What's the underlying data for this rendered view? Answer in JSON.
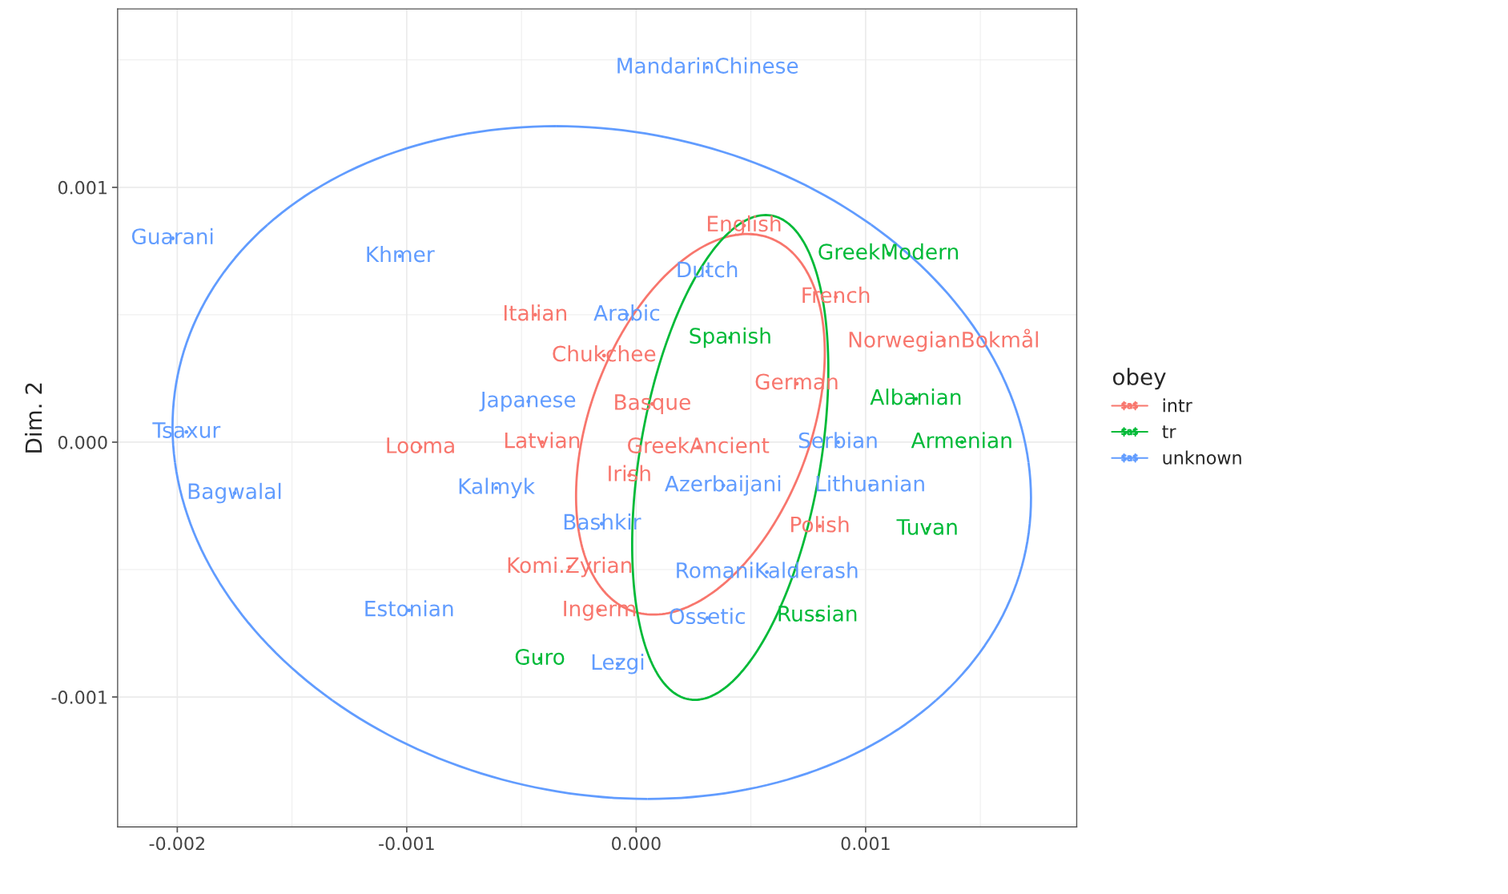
{
  "chart_data": {
    "type": "scatter",
    "ylabel": "Dim. 2",
    "legend_title": "obey",
    "legend": "right",
    "grid": true,
    "xlim": [
      -0.00226,
      0.00192
    ],
    "ylim": [
      -0.00151,
      0.0017
    ],
    "xticks": [
      {
        "value": -0.002,
        "label": "-0.002"
      },
      {
        "value": -0.001,
        "label": "-0.001"
      },
      {
        "value": 0,
        "label": "0.000"
      },
      {
        "value": 0.001,
        "label": "0.001"
      }
    ],
    "yticks": [
      {
        "value": -0.001,
        "label": "-0.001"
      },
      {
        "value": 0,
        "label": "0.000"
      },
      {
        "value": 0.001,
        "label": "0.001"
      }
    ],
    "series": [
      {
        "name": "intr",
        "color": "#f8766d",
        "x": [
          0.00047,
          0.00087,
          0.00134,
          -0.00044,
          -0.00014,
          0.0007,
          7e-05,
          -0.00041,
          -0.00094,
          0.00027,
          -3e-05,
          0.0008,
          -0.00029,
          -0.00016
        ],
        "values": [
          0.00085,
          0.00057,
          0.0004,
          0.0005,
          0.00034,
          0.00023,
          0.00015,
          0,
          -2e-05,
          -2e-05,
          -0.00013,
          -0.00033,
          -0.00049,
          -0.00066
        ],
        "value_labels": [
          "English",
          "French",
          "NorwegianBokmål",
          "Italian",
          "Chukchee",
          "German",
          "Basque",
          "Latvian",
          "Looma",
          "GreekAncient",
          "Irish",
          "Polish",
          "Komi.Zyrian",
          "Ingerm"
        ]
      },
      {
        "name": "tr",
        "color": "#00ba38",
        "x": [
          0.0011,
          0.00041,
          0.00122,
          0.00142,
          0.00127,
          0.00079,
          -0.00042
        ],
        "values": [
          0.00074,
          0.00041,
          0.00017,
          0,
          -0.00034,
          -0.00068,
          -0.00085
        ],
        "value_labels": [
          "GreekModern",
          "Spanish",
          "Albanian",
          "Armenian",
          "Tuvan",
          "Russian",
          "Guro"
        ]
      },
      {
        "name": "unknown",
        "color": "#619cff",
        "x": [
          0.00031,
          -0.00202,
          -0.00103,
          0.00031,
          -4e-05,
          -0.00047,
          -0.00196,
          0.00088,
          -0.00175,
          -0.00061,
          0.00038,
          0.00102,
          -0.00015,
          0.00057,
          -0.00099,
          0.00031,
          -8e-05
        ],
        "values": [
          0.00147,
          0.0008,
          0.00073,
          0.00067,
          0.0005,
          0.00016,
          4e-05,
          0,
          -0.0002,
          -0.00018,
          -0.00017,
          -0.00017,
          -0.00032,
          -0.00051,
          -0.00066,
          -0.00069,
          -0.00087
        ],
        "value_labels": [
          "MandarinChinese",
          "Guarani",
          "Khmer",
          "Dutch",
          "Arabic",
          "Japanese",
          "Tsaxur",
          "Serbian",
          "Bagwalal",
          "Kalmyk",
          "Azerbaijani",
          "Lithuanian",
          "Bashkir",
          "RomaniKalderash",
          "Estonian",
          "Ossetic",
          "Lezgi"
        ]
      }
    ]
  }
}
